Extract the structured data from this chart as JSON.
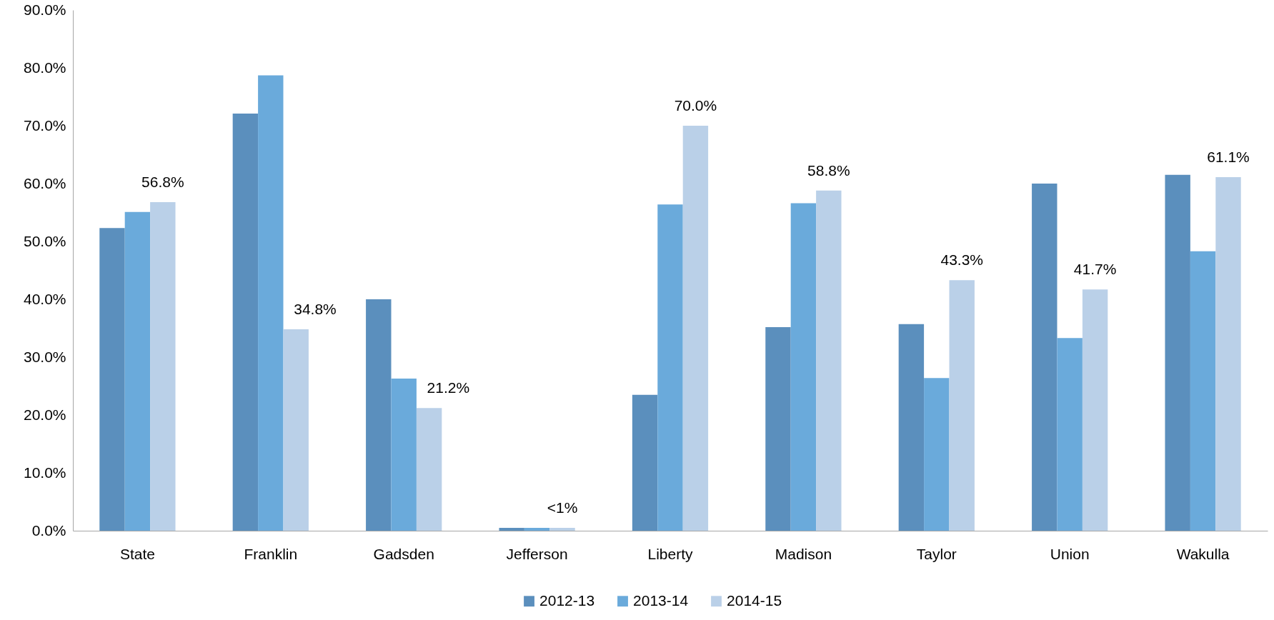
{
  "chart_data": {
    "type": "bar",
    "categories": [
      "State",
      "Franklin",
      "Gadsden",
      "Jefferson",
      "Liberty",
      "Madison",
      "Taylor",
      "Union",
      "Wakulla"
    ],
    "series": [
      {
        "name": "2012-13",
        "color": "#5b8fbd",
        "values": [
          52.3,
          72.1,
          40.0,
          0.5,
          23.5,
          35.2,
          35.7,
          60.0,
          61.5
        ]
      },
      {
        "name": "2013-14",
        "color": "#6aaadb",
        "values": [
          55.1,
          78.7,
          26.3,
          0.5,
          56.4,
          56.6,
          26.4,
          33.3,
          48.3
        ]
      },
      {
        "name": "2014-15",
        "color": "#bad0e8",
        "values": [
          56.8,
          34.8,
          21.2,
          0.5,
          70.0,
          58.8,
          43.3,
          41.7,
          61.1
        ],
        "value_labels": [
          "56.8%",
          "34.8%",
          "21.2%",
          "<1%",
          "70.0%",
          "58.8%",
          "43.3%",
          "41.7%",
          "61.1%"
        ]
      }
    ],
    "ylim": [
      0,
      90
    ],
    "yticks": [
      {
        "value": 0,
        "label": "0.0%"
      },
      {
        "value": 10,
        "label": "10.0%"
      },
      {
        "value": 20,
        "label": "20.0%"
      },
      {
        "value": 30,
        "label": "30.0%"
      },
      {
        "value": 40,
        "label": "40.0%"
      },
      {
        "value": 50,
        "label": "50.0%"
      },
      {
        "value": 60,
        "label": "60.0%"
      },
      {
        "value": 70,
        "label": "70.0%"
      },
      {
        "value": 80,
        "label": "80.0%"
      },
      {
        "value": 90,
        "label": "90.0%"
      }
    ],
    "grid": false,
    "legend": "bottom"
  }
}
